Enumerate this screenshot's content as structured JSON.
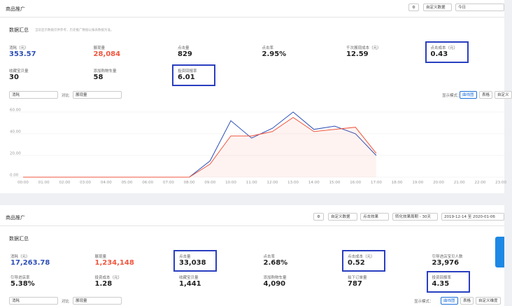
{
  "top": {
    "title": "商品推广",
    "custom": "自定义数据",
    "date": "今日",
    "summary_title": "数据汇总",
    "summary_note": "当前显示数据仅供参考，历史推广数据以报表数据为准。",
    "metrics": [
      {
        "label": "消耗（元）",
        "value": "353.57",
        "color": "#2d4fb8"
      },
      {
        "label": "展现量",
        "value": "28,084",
        "color": "#f0553e"
      },
      {
        "label": "点击量",
        "value": "829"
      },
      {
        "label": "点击率",
        "value": "2.95%"
      },
      {
        "label": "千次展现成本（元）",
        "value": "12.59"
      },
      {
        "label": "点击成本（元）",
        "value": "0.43",
        "highlight": true
      },
      {
        "label": "收藏宝贝量",
        "value": "30"
      },
      {
        "label": "添加购物车量",
        "value": "58"
      },
      {
        "label": "投资回报率",
        "value": "6.01",
        "highlight": true
      }
    ],
    "metric_select": "消耗",
    "compare_label": "对比",
    "compare_select": "展现量",
    "mode_label": "显示模式：",
    "modes": [
      "曲线图",
      "表格",
      "自定义"
    ]
  },
  "chart_data": {
    "type": "line",
    "x": [
      "00:00",
      "01:00",
      "02:00",
      "03:00",
      "04:00",
      "05:00",
      "06:00",
      "07:00",
      "08:00",
      "09:00",
      "10:00",
      "11:00",
      "12:00",
      "13:00",
      "14:00",
      "15:00",
      "16:00",
      "17:00",
      "18:00",
      "19:00",
      "20:00",
      "21:00",
      "22:00",
      "23:00"
    ],
    "series": [
      {
        "color": "#2d4fb8",
        "values": [
          0,
          0,
          0,
          0,
          0,
          0,
          0,
          0,
          0,
          15,
          52,
          36,
          45,
          60,
          44,
          47,
          40,
          20,
          null,
          null,
          null,
          null,
          null,
          null
        ]
      },
      {
        "color": "#f0553e",
        "area": true,
        "values": [
          0,
          0,
          0,
          0,
          0,
          0,
          0,
          0,
          0,
          12,
          38,
          38,
          42,
          55,
          42,
          44,
          46,
          22,
          null,
          null,
          null,
          null,
          null,
          null
        ]
      }
    ],
    "ylim": [
      0,
      60
    ],
    "yticks": [
      {
        "value": 0,
        "label": "0.00"
      },
      {
        "value": 20,
        "label": "20.00"
      },
      {
        "value": 40,
        "label": "40.00"
      },
      {
        "value": 60,
        "label": "60.00"
      }
    ],
    "grid": true
  },
  "bottom": {
    "title": "商品推广",
    "custom": "自定义数据",
    "effect": "点击效果",
    "period": "转化效果周期 - 30天",
    "date": "2019-12-14 至 2020-01-06",
    "summary_title": "数据汇总",
    "metrics": [
      {
        "label": "消耗（元）",
        "value": "17,263.78",
        "color": "#2d4fb8"
      },
      {
        "label": "展现量",
        "value": "1,234,148",
        "color": "#f0553e"
      },
      {
        "label": "点击量",
        "value": "33,038",
        "highlight": true
      },
      {
        "label": "点击率",
        "value": "2.68%"
      },
      {
        "label": "点击成本（元）",
        "value": "0.52",
        "highlight": true
      },
      {
        "label": "引导进店宝贝人数",
        "value": "23,976"
      },
      {
        "label": "引导进店率",
        "value": "5.38%"
      },
      {
        "label": "投资成本（元）",
        "value": "1.28"
      },
      {
        "label": "收藏宝贝量",
        "value": "1,441"
      },
      {
        "label": "添加购物车量",
        "value": "4,090"
      },
      {
        "label": "拍下订单量",
        "value": "787"
      },
      {
        "label": "投资回报率",
        "value": "4.35",
        "highlight": true
      }
    ],
    "metric_select": "消耗",
    "compare_label": "对比",
    "compare_select": "展现量",
    "mode_label": "显示模式：",
    "modes": [
      "曲线图",
      "表格",
      "自定义维度"
    ]
  }
}
